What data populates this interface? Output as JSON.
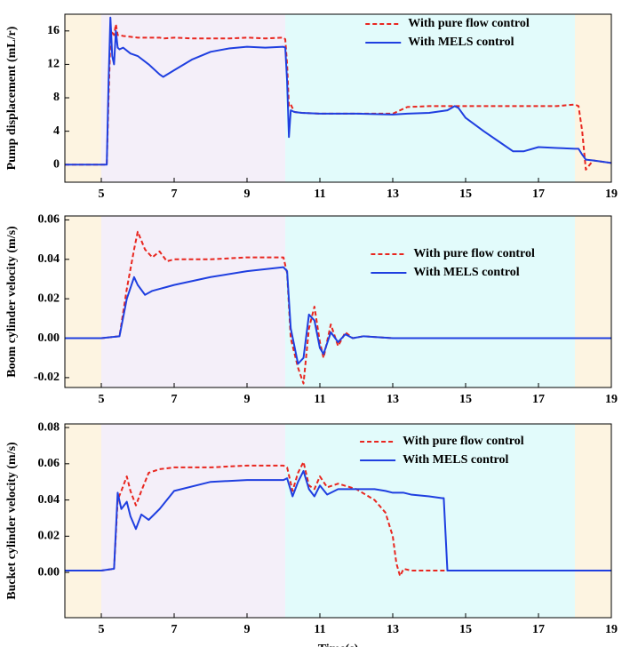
{
  "chart_data": [
    {
      "type": "line",
      "ylabel": "Pump displacement (mL/r)",
      "xlim": [
        4,
        19
      ],
      "xticks": [
        5,
        7,
        9,
        11,
        13,
        15,
        17,
        19
      ],
      "ylim": [
        -2.1,
        18
      ],
      "yticks": [
        0,
        4,
        8,
        12,
        16
      ],
      "grid": false,
      "legend": "upper right",
      "bands": [
        {
          "from": 4,
          "to": 5,
          "color": "#fdf4e1"
        },
        {
          "from": 5,
          "to": 10.05,
          "color": "#f4eff9"
        },
        {
          "from": 10.05,
          "to": 18,
          "color": "#e2fbfb"
        },
        {
          "from": 18,
          "to": 19,
          "color": "#fdf4e1"
        }
      ],
      "x": [
        4,
        5,
        5.15,
        5.2,
        5.25,
        5.3,
        5.35,
        5.4,
        5.45,
        5.5,
        5.6,
        5.8,
        6,
        6.3,
        6.6,
        6.7,
        7,
        7.5,
        8,
        8.5,
        9,
        9.5,
        10,
        10.05,
        10.1,
        10.15,
        10.2,
        10.3,
        10.5,
        11,
        12,
        13,
        13.4,
        14,
        14.5,
        14.7,
        14.8,
        15,
        15.5,
        16,
        16.3,
        16.6,
        17,
        17.5,
        18,
        18.1,
        18.2,
        18.3,
        18.5,
        19
      ],
      "series": [
        {
          "name": "With pure flow control",
          "color": "#e8261f",
          "style": "dashed",
          "values": [
            0,
            0,
            0,
            8,
            15,
            16,
            15.5,
            16.8,
            15.5,
            15.5,
            15.4,
            15.3,
            15.2,
            15.2,
            15.2,
            15.1,
            15.2,
            15.1,
            15.1,
            15.1,
            15.2,
            15.1,
            15.2,
            15,
            12,
            7,
            7.2,
            6.3,
            6.2,
            6.1,
            6.1,
            6.1,
            6.9,
            7,
            7,
            7,
            7,
            7,
            7,
            7,
            7,
            7,
            7,
            7,
            7.2,
            7,
            4,
            -0.6,
            0.5,
            0.2
          ]
        },
        {
          "name": "With MELS control",
          "color": "#1f3fe0",
          "style": "solid",
          "values": [
            0,
            0,
            0,
            10,
            17.6,
            13,
            12,
            16,
            14,
            13.8,
            14,
            13.3,
            13,
            12,
            10.8,
            10.5,
            11.3,
            12.6,
            13.5,
            13.9,
            14.1,
            14,
            14.1,
            14,
            10,
            3.3,
            6.5,
            6.3,
            6.2,
            6.1,
            6.1,
            6,
            6.1,
            6.2,
            6.5,
            7,
            6.8,
            5.6,
            4,
            2.5,
            1.6,
            1.6,
            2.1,
            2,
            1.9,
            1.9,
            1.2,
            0.6,
            0.5,
            0.2
          ]
        }
      ]
    },
    {
      "type": "line",
      "ylabel": "Boom cylinder velocity (m/s)",
      "xlim": [
        4,
        19
      ],
      "xticks": [
        5,
        7,
        9,
        11,
        13,
        15,
        17,
        19
      ],
      "ylim": [
        -0.025,
        0.062
      ],
      "yticks": [
        -0.02,
        {
          "value": 0,
          "label": "0.00"
        },
        0.02,
        0.04,
        0.06
      ],
      "grid": false,
      "legend": "center right",
      "bands": [
        {
          "from": 4,
          "to": 5,
          "color": "#fdf4e1"
        },
        {
          "from": 5,
          "to": 10.05,
          "color": "#f4eff9"
        },
        {
          "from": 10.05,
          "to": 18,
          "color": "#e2fbfb"
        },
        {
          "from": 18,
          "to": 19,
          "color": "#fdf4e1"
        }
      ],
      "x": [
        4,
        5,
        5.5,
        5.7,
        5.9,
        6,
        6.2,
        6.4,
        6.6,
        6.8,
        7,
        8,
        9,
        10,
        10.1,
        10.2,
        10.4,
        10.55,
        10.7,
        10.85,
        11,
        11.1,
        11.3,
        11.5,
        11.7,
        11.9,
        12.2,
        13,
        14,
        15,
        16,
        17,
        18,
        19
      ],
      "series": [
        {
          "name": "With pure flow control",
          "color": "#e8261f",
          "style": "dashed",
          "values": [
            0,
            0,
            0.001,
            0.025,
            0.045,
            0.054,
            0.045,
            0.041,
            0.044,
            0.039,
            0.04,
            0.04,
            0.041,
            0.041,
            0.033,
            0,
            -0.015,
            -0.023,
            0.005,
            0.016,
            -0.002,
            -0.01,
            0.007,
            -0.004,
            0.003,
            0,
            0.001,
            0,
            0,
            0,
            0,
            0,
            0,
            0
          ]
        },
        {
          "name": "With MELS control",
          "color": "#1f3fe0",
          "style": "solid",
          "values": [
            0,
            0,
            0.001,
            0.02,
            0.031,
            0.027,
            0.022,
            0.024,
            0.025,
            0.026,
            0.027,
            0.031,
            0.034,
            0.036,
            0.034,
            0.005,
            -0.013,
            -0.01,
            0.012,
            0.009,
            -0.005,
            -0.008,
            0.003,
            -0.002,
            0.002,
            0,
            0.001,
            0,
            0,
            0,
            0,
            0,
            0,
            0
          ]
        }
      ]
    },
    {
      "type": "line",
      "ylabel": "Bucket cylinder velocity (m/s)",
      "xlabel": "Time(s)",
      "xlim": [
        4,
        19
      ],
      "xticks": [
        5,
        7,
        9,
        11,
        13,
        15,
        17,
        19
      ],
      "ylim": [
        -0.025,
        0.082
      ],
      "yticks": [
        {
          "value": 0,
          "label": "0.00"
        },
        0.02,
        0.04,
        0.06,
        0.08
      ],
      "grid": false,
      "legend": "upper center",
      "bands": [
        {
          "from": 4,
          "to": 5,
          "color": "#fdf4e1"
        },
        {
          "from": 5,
          "to": 10.05,
          "color": "#f4eff9"
        },
        {
          "from": 10.05,
          "to": 18,
          "color": "#e2fbfb"
        },
        {
          "from": 18,
          "to": 19,
          "color": "#fdf4e1"
        }
      ],
      "x": [
        4,
        5,
        5.35,
        5.45,
        5.55,
        5.7,
        5.8,
        5.95,
        6.1,
        6.3,
        6.6,
        7,
        8,
        9,
        10,
        10.1,
        10.25,
        10.4,
        10.55,
        10.7,
        10.85,
        11,
        11.2,
        11.5,
        12,
        12.5,
        12.8,
        13,
        13.1,
        13.2,
        13.3,
        13.5,
        14,
        14.35,
        14.4,
        14.5,
        15,
        16,
        17,
        18,
        19
      ],
      "series": [
        {
          "name": "With pure flow control",
          "color": "#e8261f",
          "style": "dashed",
          "values": [
            0.001,
            0.001,
            0.002,
            0.04,
            0.045,
            0.053,
            0.045,
            0.037,
            0.045,
            0.055,
            0.057,
            0.058,
            0.058,
            0.059,
            0.059,
            0.058,
            0.045,
            0.055,
            0.061,
            0.048,
            0.046,
            0.053,
            0.047,
            0.049,
            0.046,
            0.04,
            0.033,
            0.02,
            0.005,
            -0.002,
            0.002,
            0.001,
            0.001,
            0.001,
            0.001,
            0.001,
            0.001,
            0.001,
            0.001,
            0.001,
            0.001
          ]
        },
        {
          "name": "With MELS control",
          "color": "#1f3fe0",
          "style": "solid",
          "values": [
            0.001,
            0.001,
            0.002,
            0.044,
            0.035,
            0.039,
            0.031,
            0.024,
            0.032,
            0.029,
            0.035,
            0.045,
            0.05,
            0.051,
            0.051,
            0.052,
            0.042,
            0.05,
            0.056,
            0.046,
            0.042,
            0.048,
            0.043,
            0.046,
            0.046,
            0.046,
            0.045,
            0.044,
            0.044,
            0.044,
            0.044,
            0.043,
            0.042,
            0.041,
            0.041,
            0.001,
            0.001,
            0.001,
            0.001,
            0.001,
            0.001
          ]
        }
      ]
    }
  ]
}
